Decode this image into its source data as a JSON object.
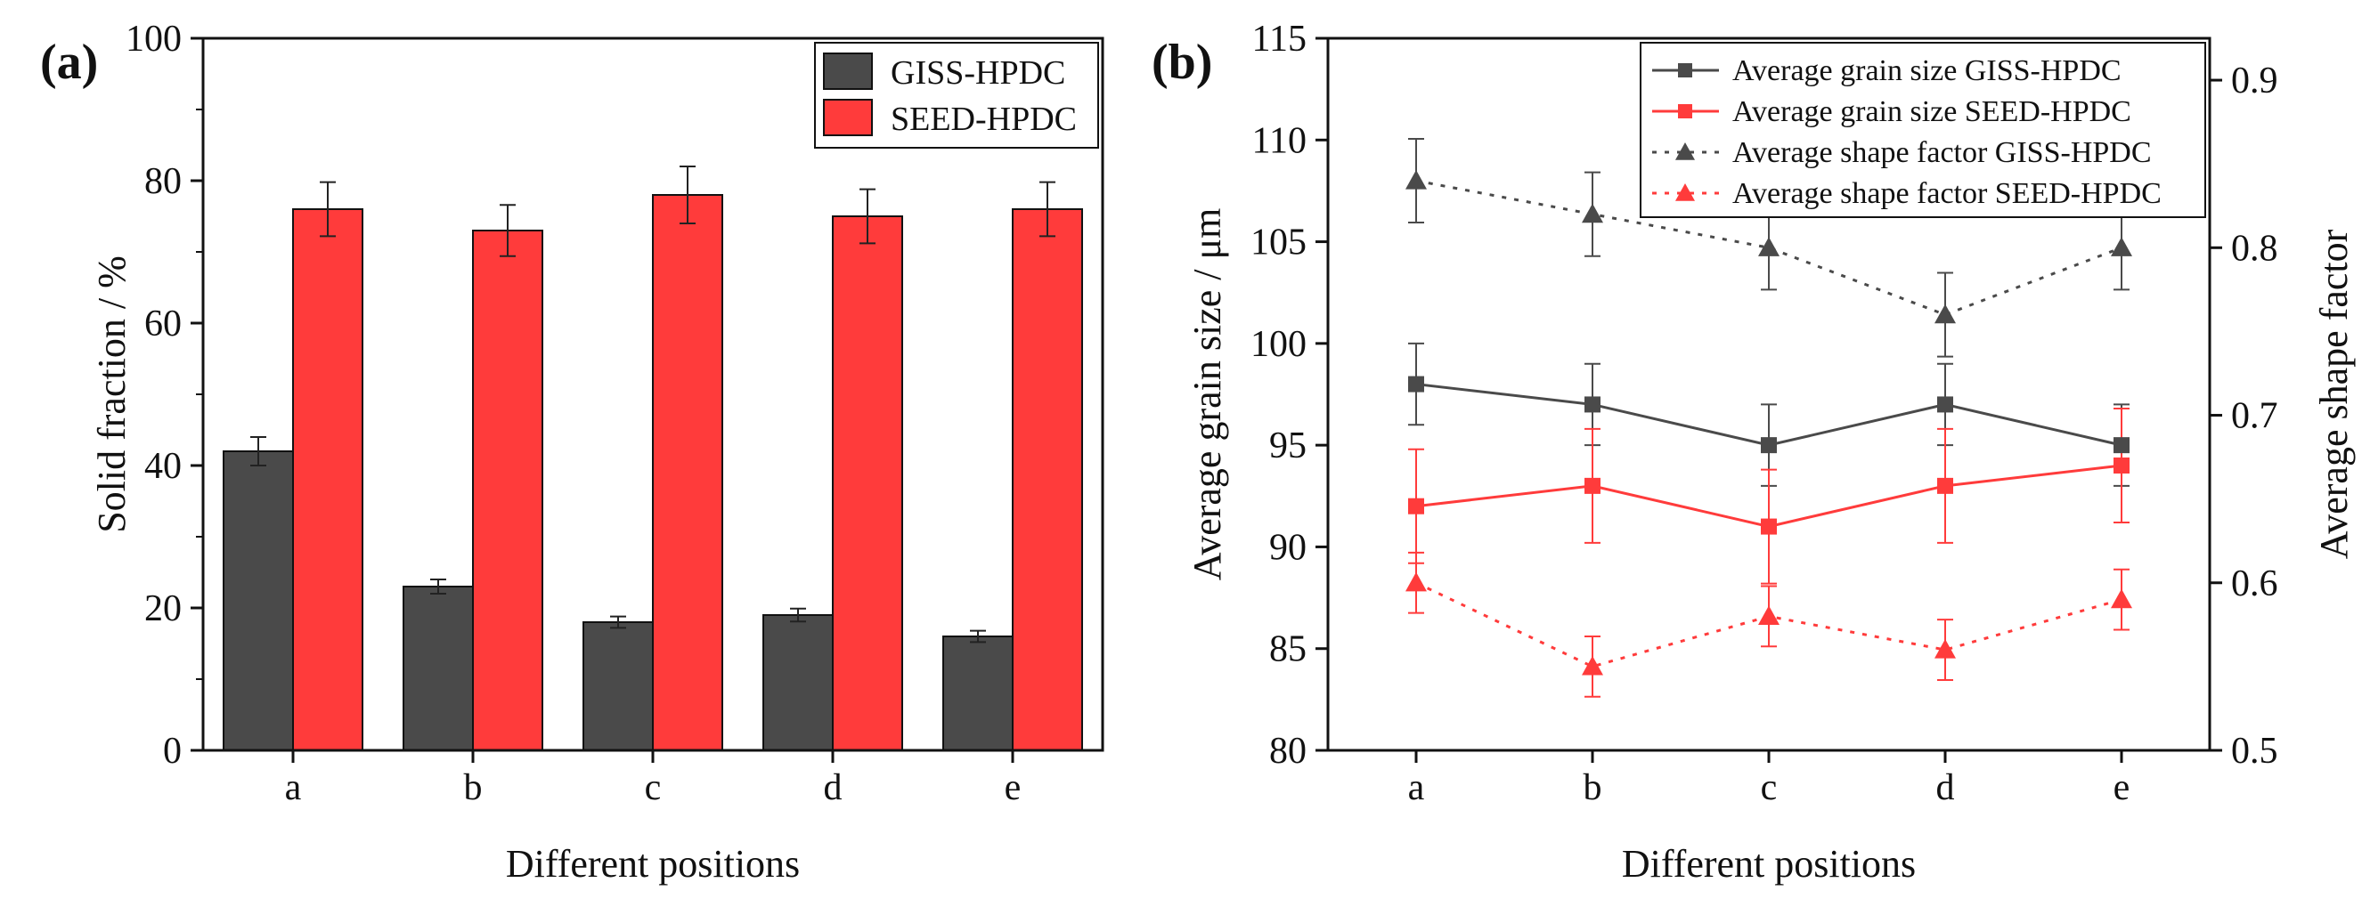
{
  "colors": {
    "giss": "#4a4a4a",
    "seed": "#ff3b3b",
    "axis": "#111111"
  },
  "chart_data": [
    {
      "panel_label": "(a)",
      "type": "bar",
      "title": "",
      "categories": [
        "a",
        "b",
        "c",
        "d",
        "e"
      ],
      "series": [
        {
          "name": "GISS-HPDC",
          "values": [
            42,
            23,
            18,
            19,
            16
          ],
          "errors": [
            2,
            1,
            0.8,
            0.9,
            0.8
          ]
        },
        {
          "name": "SEED-HPDC",
          "values": [
            76,
            73,
            78,
            75,
            76
          ],
          "errors": [
            3.8,
            3.6,
            4,
            3.8,
            3.8
          ]
        }
      ],
      "xlabel": "Different positions",
      "ylabel": "Solid fraction / %",
      "ylim": [
        0,
        100
      ],
      "yticks": [
        0,
        20,
        40,
        60,
        80,
        100
      ],
      "legend_position": "top-right"
    },
    {
      "panel_label": "(b)",
      "type": "line",
      "title": "",
      "categories": [
        "a",
        "b",
        "c",
        "d",
        "e"
      ],
      "series": [
        {
          "name": "Average grain size GISS-HPDC",
          "axis": "left",
          "values": [
            98,
            97,
            95,
            97,
            95
          ],
          "errors": [
            2,
            2,
            2,
            2,
            2
          ],
          "style": "solid",
          "marker": "square",
          "color": "giss"
        },
        {
          "name": "Average grain size SEED-HPDC",
          "axis": "left",
          "values": [
            92,
            93,
            91,
            93,
            94
          ],
          "errors": [
            2.8,
            2.8,
            2.8,
            2.8,
            2.8
          ],
          "style": "solid",
          "marker": "square",
          "color": "seed"
        },
        {
          "name": "Average shape factor GISS-HPDC",
          "axis": "right",
          "values": [
            0.84,
            0.82,
            0.8,
            0.76,
            0.8
          ],
          "errors": [
            0.025,
            0.025,
            0.025,
            0.025,
            0.025
          ],
          "style": "dotted",
          "marker": "triangle",
          "color": "giss"
        },
        {
          "name": "Average shape factor SEED-HPDC",
          "axis": "right",
          "values": [
            0.6,
            0.55,
            0.58,
            0.56,
            0.59
          ],
          "errors": [
            0.018,
            0.018,
            0.018,
            0.018,
            0.018
          ],
          "style": "dotted",
          "marker": "triangle",
          "color": "seed"
        }
      ],
      "xlabel": "Different positions",
      "ylabel": "Average grain size / μm",
      "ylim": [
        80,
        115
      ],
      "yticks": [
        80,
        85,
        90,
        95,
        100,
        105,
        110,
        115
      ],
      "y2label": "Average shape factor",
      "y2lim": [
        0.5,
        0.925
      ],
      "y2ticks": [
        0.5,
        0.6,
        0.7,
        0.8,
        0.9
      ],
      "legend_position": "top-right"
    }
  ]
}
